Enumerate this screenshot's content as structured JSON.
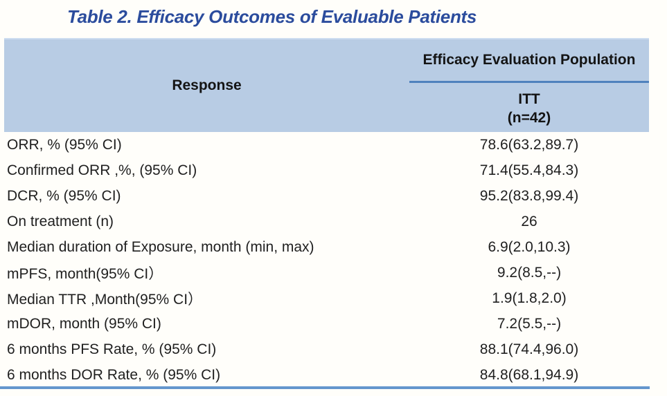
{
  "title": "Table 2. Efficacy Outcomes of Evaluable Patients",
  "table": {
    "col_response": "Response",
    "col_population": "Efficacy Evaluation Population",
    "subcol_group": "ITT",
    "subcol_n": "(n=42)",
    "rows": [
      {
        "label": "ORR, % (95% CI)",
        "value": "78.6(63.2,89.7)"
      },
      {
        "label": "Confirmed ORR ,%, (95% CI)",
        "value": "71.4(55.4,84.3)"
      },
      {
        "label": "DCR, % (95% CI)",
        "value": "95.2(83.8,99.4)"
      },
      {
        "label": "On treatment (n)",
        "value": "26"
      },
      {
        "label": "Median duration of Exposure, month (min, max)",
        "value": "6.9(2.0,10.3)"
      },
      {
        "label": "mPFS, month(95% CI）",
        "value": "9.2(8.5,--)"
      },
      {
        "label": "Median TTR ,Month(95% CI）",
        "value": "1.9(1.8,2.0)"
      },
      {
        "label": "mDOR, month (95% CI)",
        "value": "7.2(5.5,--)"
      },
      {
        "label": "6 months PFS Rate, % (95% CI)",
        "value": "88.1(74.4,96.0)"
      },
      {
        "label": "6 months DOR Rate, % (95% CI)",
        "value": "84.8(68.1,94.9)"
      }
    ]
  },
  "colors": {
    "title_text": "#2b4c9d",
    "header_bg": "#b8cce4",
    "header_divider": "#4f81bd",
    "bottom_rule": "#6496cd",
    "body_text": "#1f1f1f"
  }
}
